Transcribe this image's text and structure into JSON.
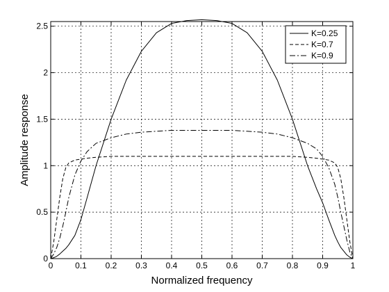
{
  "chart_data": {
    "type": "line",
    "title": "",
    "xlabel": "Normalized frequency",
    "ylabel": "Amplitude response",
    "xlim": [
      0,
      1
    ],
    "ylim": [
      0,
      2.55
    ],
    "xticks": [
      "0",
      "0.1",
      "0.2",
      "0.3",
      "0.4",
      "0.5",
      "0.6",
      "0.7",
      "0.8",
      "0.9",
      "1"
    ],
    "yticks": [
      "0",
      "0.5",
      "1",
      "1.5",
      "2",
      "2.5"
    ],
    "ytick_values": [
      0,
      0.5,
      1,
      1.5,
      2,
      2.5
    ],
    "grid": true,
    "legend_position": "top-right",
    "x": [
      0,
      0.01,
      0.02,
      0.03,
      0.04,
      0.05,
      0.06,
      0.08,
      0.1,
      0.12,
      0.15,
      0.2,
      0.25,
      0.3,
      0.35,
      0.4,
      0.45,
      0.5,
      0.55,
      0.6,
      0.65,
      0.7,
      0.75,
      0.8,
      0.85,
      0.88,
      0.9,
      0.92,
      0.94,
      0.95,
      0.96,
      0.97,
      0.98,
      0.99,
      1
    ],
    "series": [
      {
        "name": "K=0.25",
        "dash": "none",
        "values": [
          0,
          0.01,
          0.025,
          0.05,
          0.08,
          0.11,
          0.15,
          0.25,
          0.42,
          0.65,
          1.0,
          1.5,
          1.92,
          2.23,
          2.43,
          2.53,
          2.56,
          2.57,
          2.56,
          2.53,
          2.43,
          2.23,
          1.92,
          1.5,
          1.0,
          0.75,
          0.6,
          0.42,
          0.25,
          0.18,
          0.12,
          0.08,
          0.04,
          0.015,
          0
        ]
      },
      {
        "name": "K=0.7",
        "dash": "5,3",
        "values": [
          0,
          0.18,
          0.42,
          0.66,
          0.86,
          0.98,
          1.03,
          1.06,
          1.07,
          1.08,
          1.09,
          1.1,
          1.1,
          1.1,
          1.1,
          1.1,
          1.1,
          1.1,
          1.1,
          1.1,
          1.1,
          1.1,
          1.1,
          1.1,
          1.09,
          1.08,
          1.07,
          1.06,
          1.03,
          0.98,
          0.86,
          0.66,
          0.42,
          0.18,
          0
        ]
      },
      {
        "name": "K=0.9",
        "dash": "8,3,2,3",
        "values": [
          0,
          0.05,
          0.12,
          0.22,
          0.35,
          0.5,
          0.66,
          0.9,
          1.05,
          1.15,
          1.24,
          1.3,
          1.34,
          1.36,
          1.37,
          1.38,
          1.38,
          1.38,
          1.38,
          1.38,
          1.37,
          1.36,
          1.34,
          1.3,
          1.24,
          1.18,
          1.1,
          0.98,
          0.8,
          0.66,
          0.5,
          0.35,
          0.2,
          0.07,
          0
        ]
      }
    ]
  }
}
